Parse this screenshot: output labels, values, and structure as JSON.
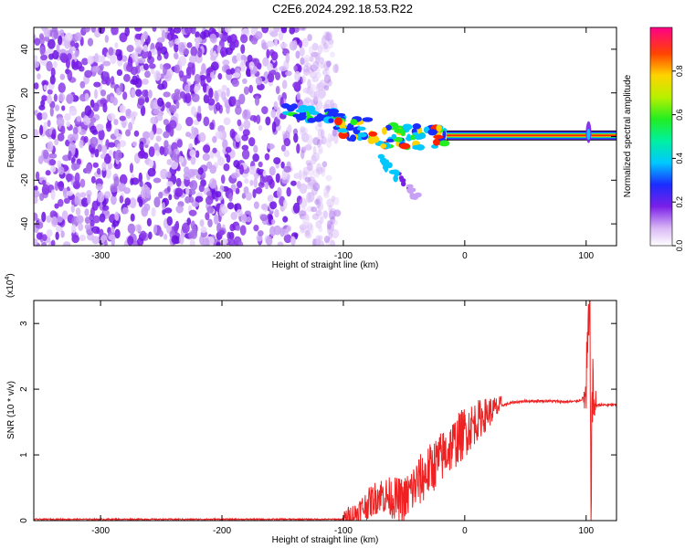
{
  "title": "C2E6.2024.292.18.53.R22",
  "colors": {
    "snr_line": "#ee2222",
    "spec_low": "#8a2be2",
    "axis": "#000000"
  },
  "colorbar": {
    "label": "Normalized spectral amplitude",
    "ticks": [
      "0.0",
      "0.2",
      "0.4",
      "0.6",
      "0.8"
    ],
    "tick_values": [
      0.0,
      0.2,
      0.4,
      0.6,
      0.8
    ],
    "range": [
      0,
      1
    ],
    "colormap": "rainbow"
  },
  "chart_data": [
    {
      "type": "heatmap",
      "title": "",
      "xlabel": "Height of straight line (km)",
      "ylabel": "Frequency (Hz)",
      "xlim": [
        -355,
        125
      ],
      "ylim": [
        -50,
        50
      ],
      "xticks": [
        -300,
        -200,
        -100,
        0,
        100
      ],
      "yticks": [
        -40,
        -20,
        0,
        20,
        40
      ],
      "xtick_labels": [
        "-300",
        "-200",
        "-100",
        "0",
        "100"
      ],
      "ytick_labels": [
        "-40",
        "-20",
        "0",
        "20",
        "40"
      ],
      "features": {
        "noise_region_x": [
          -355,
          -115
        ],
        "noise_gap_x": [
          -145,
          -140
        ],
        "upper_band": {
          "x": [
            -150,
            -100
          ],
          "freq": 12,
          "amplitude": 0.45
        },
        "main_band": {
          "x": [
            -105,
            125
          ],
          "freq": 0.5,
          "amplitude": 0.95
        },
        "descending_branch": {
          "x": [
            -70,
            -35
          ],
          "freq": [
            -10,
            -30
          ]
        },
        "spike_x": 102
      }
    },
    {
      "type": "line",
      "title": "",
      "xlabel": "Height of straight line (km)",
      "ylabel": "SNR (10 * v/v)",
      "y_multiplier_label": "(x10",
      "y_multiplier_exp": "4",
      "y_multiplier_close": ")",
      "xlim": [
        -355,
        125
      ],
      "ylim": [
        0,
        3.35
      ],
      "xticks": [
        -300,
        -200,
        -100,
        0,
        100
      ],
      "yticks": [
        0,
        1,
        2,
        3
      ],
      "xtick_labels": [
        "-300",
        "-200",
        "-100",
        "0",
        "100"
      ],
      "ytick_labels": [
        "0",
        "1",
        "2",
        "3"
      ],
      "series": [
        {
          "color": "#ee2222",
          "x": [
            -355,
            -100,
            -90,
            -80,
            -70,
            -60,
            -50,
            -40,
            -30,
            -20,
            -10,
            0,
            10,
            20,
            30,
            40,
            50,
            60,
            70,
            80,
            90,
            95,
            100,
            101,
            102,
            103,
            104,
            105,
            106,
            108,
            110,
            125
          ],
          "y": [
            0.02,
            0.02,
            0.1,
            0.25,
            0.4,
            0.35,
            0.3,
            0.55,
            0.75,
            0.95,
            1.15,
            1.35,
            1.52,
            1.65,
            1.75,
            1.8,
            1.82,
            1.82,
            1.82,
            1.81,
            1.81,
            1.83,
            1.9,
            2.5,
            2.8,
            3.3,
            0.35,
            2.0,
            1.75,
            1.75,
            1.76,
            1.76
          ]
        }
      ]
    }
  ]
}
